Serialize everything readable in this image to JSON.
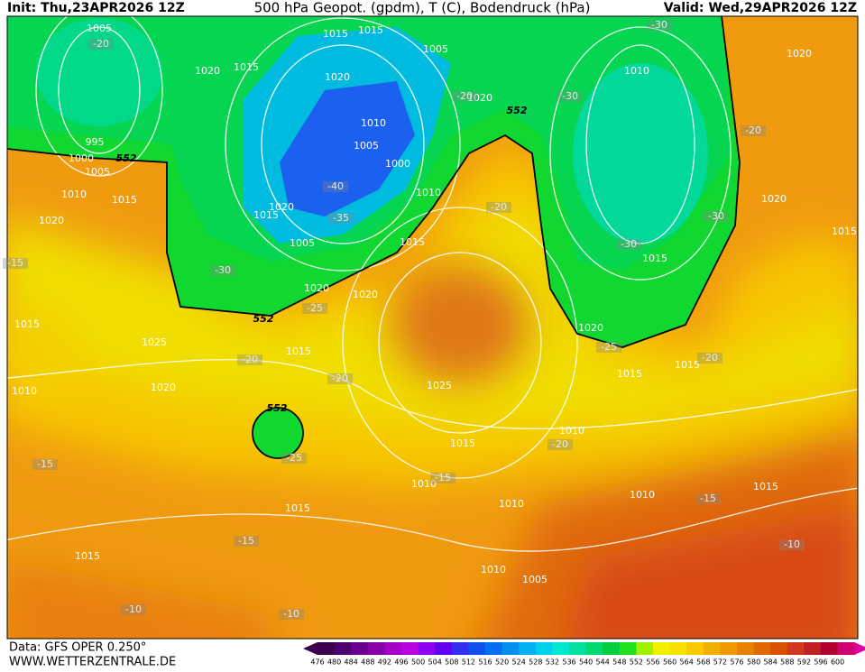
{
  "header": {
    "init": "Init: Thu,23APR2026 12Z",
    "title": "500 hPa Geopot. (gpdm), T (C), Bodendruck (hPa)",
    "valid": "Valid: Wed,29APR2026 12Z"
  },
  "footer": {
    "source": "Data: GFS OPER 0.250°",
    "website": "WWW.WETTERZENTRALE.DE"
  },
  "colorbar": {
    "labels": [
      476,
      480,
      484,
      488,
      492,
      496,
      500,
      504,
      508,
      512,
      516,
      520,
      524,
      528,
      532,
      536,
      540,
      544,
      548,
      552,
      556,
      560,
      564,
      568,
      572,
      576,
      580,
      584,
      588,
      592,
      596,
      600
    ],
    "colors": [
      "#3b0050",
      "#4d0070",
      "#6a0090",
      "#8800a8",
      "#a400c8",
      "#b800e0",
      "#9000f0",
      "#6000f0",
      "#3030f0",
      "#1050f0",
      "#0070f0",
      "#0090f0",
      "#00b0f0",
      "#00d0f0",
      "#00e8d0",
      "#00e0a0",
      "#00d870",
      "#00d040",
      "#20e020",
      "#a0f000",
      "#f0f000",
      "#f8e000",
      "#f8c800",
      "#f0b000",
      "#f09800",
      "#e88000",
      "#e06800",
      "#d85000",
      "#d03820",
      "#c02020",
      "#b00030",
      "#d00070"
    ]
  },
  "isobars": [
    1005,
    1015,
    1015,
    1005,
    1020,
    1015,
    1020,
    1020,
    1010,
    1020,
    1010,
    1005,
    1000,
    995,
    1000,
    1005,
    1010,
    1015,
    1020,
    1015,
    1020,
    1005,
    1010,
    1015,
    1020,
    1015,
    1015,
    1020,
    1020,
    1015,
    1025,
    1015,
    1020,
    1010,
    1025,
    1020,
    1015,
    1015,
    1010,
    1015,
    1010,
    1010,
    1010,
    1015,
    1015,
    1015,
    1010,
    1005
  ],
  "temperatures": [
    -20,
    -30,
    -30,
    -20,
    -20,
    -40,
    -35,
    -30,
    -30,
    -30,
    -15,
    -25,
    -25,
    -20,
    -20,
    -20,
    -20,
    -25,
    -20,
    -15,
    -15,
    -15,
    -15,
    -10,
    -10,
    -10
  ],
  "geopotential": [
    552,
    552,
    552,
    552
  ]
}
